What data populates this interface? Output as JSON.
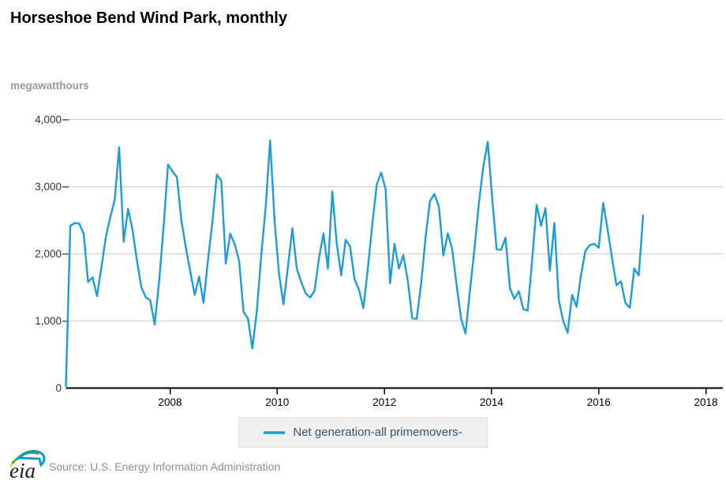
{
  "header": {
    "title": "Horseshoe Bend Wind Park, monthly"
  },
  "chart": {
    "units_label": "megawatthours",
    "line_color": "#1e9cd7",
    "gridline_color": "#cccccc",
    "axis_color": "#000000",
    "tick_color": "#555555",
    "y_label_color": "#333333",
    "x_label_color": "#000000"
  },
  "legend": {
    "label": "Net generation-all primemovers-",
    "swatch_color": "#1e9cd7"
  },
  "footer": {
    "source": "Source: U.S. Energy Information Administration",
    "logo_text": "eia",
    "logo_colors": {
      "green": "#4ea635",
      "yellow": "#c9d64a",
      "blue": "#0096d7",
      "text": "#1a1a1a"
    }
  },
  "chart_data": {
    "type": "line",
    "title": "Horseshoe Bend Wind Park, monthly",
    "ylabel": "megawatthours",
    "xlabel": "",
    "grid": "horizontal",
    "legend_position": "bottom-center",
    "xlim": [
      2006.0,
      2018.1
    ],
    "ylim": [
      0,
      4000
    ],
    "x_ticks": [
      "2008",
      "2010",
      "2012",
      "2014",
      "2016",
      "2018"
    ],
    "x_tick_years": [
      2008,
      2010,
      2012,
      2014,
      2016,
      2018
    ],
    "y_ticks": [
      0,
      1000,
      2000,
      3000,
      4000
    ],
    "y_tick_labels": [
      "0",
      "1,000",
      "2,000",
      "3,000",
      "4,000"
    ],
    "frequency": "monthly",
    "x_start": "2006-01",
    "x_end": "2016-11",
    "series": [
      {
        "name": "Net generation-all primemovers-",
        "color": "#1e9cd7",
        "values": [
          30,
          2420,
          2460,
          2450,
          2300,
          1580,
          1650,
          1370,
          1800,
          2250,
          2550,
          2810,
          3590,
          2180,
          2670,
          2360,
          1900,
          1500,
          1350,
          1310,
          950,
          1600,
          2400,
          3330,
          3230,
          3140,
          2500,
          2100,
          1740,
          1390,
          1660,
          1270,
          1915,
          2480,
          3180,
          3090,
          1855,
          2300,
          2150,
          1895,
          1135,
          1035,
          590,
          1155,
          1990,
          2700,
          3690,
          2480,
          1700,
          1250,
          1800,
          2380,
          1780,
          1580,
          1410,
          1350,
          1450,
          1935,
          2305,
          1780,
          2930,
          2150,
          1680,
          2210,
          2110,
          1620,
          1465,
          1190,
          1780,
          2440,
          3030,
          3210,
          2965,
          1560,
          2150,
          1780,
          1980,
          1600,
          1040,
          1030,
          1560,
          2250,
          2790,
          2890,
          2700,
          1975,
          2305,
          2070,
          1525,
          1035,
          810,
          1465,
          2070,
          2750,
          3300,
          3670,
          2830,
          2070,
          2060,
          2240,
          1490,
          1330,
          1445,
          1175,
          1155,
          1900,
          2730,
          2420,
          2680,
          1750,
          2460,
          1310,
          1000,
          823,
          1390,
          1210,
          1680,
          2050,
          2130,
          2150,
          2090,
          2760,
          2360,
          1935,
          1530,
          1590,
          1270,
          1195,
          1780,
          1680,
          2575
        ]
      }
    ]
  }
}
